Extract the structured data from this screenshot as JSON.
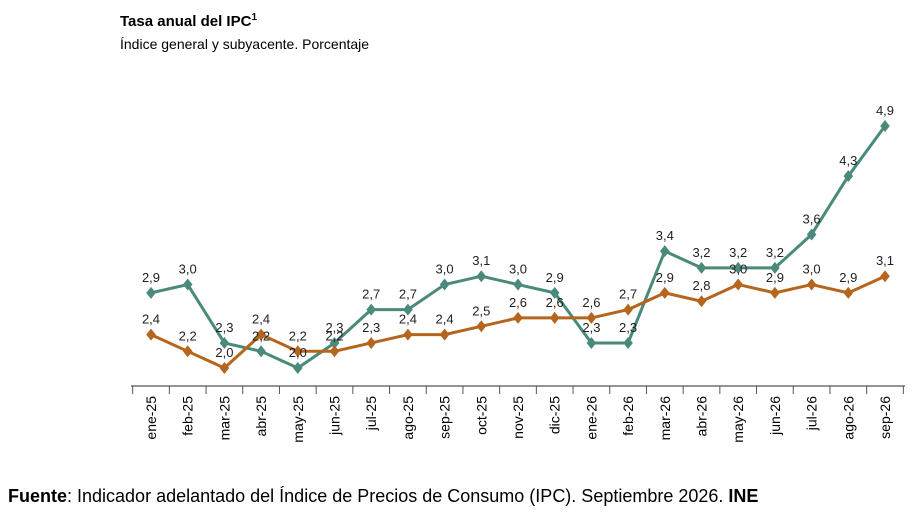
{
  "header": {
    "title": "Tasa anual del IPC",
    "title_sup": "1",
    "subtitle": "Índice general y subyacente. Porcentaje"
  },
  "footer": {
    "label": "Fuente",
    "text": ": Indicador adelantado del Índice de Precios de Consumo (IPC). Septiembre 2026. ",
    "org": "INE"
  },
  "chart_data": {
    "type": "line",
    "categories": [
      "ene-25",
      "feb-25",
      "mar-25",
      "abr-25",
      "may-25",
      "jun-25",
      "jul-25",
      "ago-25",
      "sep-25",
      "oct-25",
      "nov-25",
      "dic-25",
      "ene-26",
      "feb-26",
      "mar-26",
      "abr-26",
      "may-26",
      "jun-26",
      "jul-26",
      "ago-26",
      "sep-26"
    ],
    "series": [
      {
        "color": "#4a8a7c",
        "values": [
          2.9,
          3.0,
          2.3,
          2.2,
          2.0,
          2.3,
          2.7,
          2.7,
          3.0,
          3.1,
          3.0,
          2.9,
          2.3,
          2.3,
          3.4,
          3.2,
          3.2,
          3.2,
          3.6,
          4.3,
          4.9
        ],
        "labels": [
          "2,9",
          "3,0",
          "2,3",
          "2,2",
          "2,0",
          "2,3",
          "2,7",
          "2,7",
          "3,0",
          "3,1",
          "3,0",
          "2,9",
          "2,3",
          "2,3",
          "3,4",
          "3,2",
          "3,2",
          "3,2",
          "3,6",
          "4,3",
          "4,9"
        ]
      },
      {
        "color": "#b5651d",
        "values": [
          2.4,
          2.2,
          2.0,
          2.4,
          2.2,
          2.2,
          2.3,
          2.4,
          2.4,
          2.5,
          2.6,
          2.6,
          2.6,
          2.7,
          2.9,
          2.8,
          3.0,
          2.9,
          3.0,
          2.9,
          3.1
        ],
        "labels": [
          "2,4",
          "2,2",
          "2,0",
          "2,4",
          "2,2",
          "2,2",
          "2,3",
          "2,4",
          "2,4",
          "2,5",
          "2,6",
          "2,6",
          "2,6",
          "2,7",
          "2,9",
          "2,8",
          "3,0",
          "2,9",
          "3,0",
          "2,9",
          "3,1"
        ]
      }
    ],
    "grid": false,
    "legend": "none"
  }
}
